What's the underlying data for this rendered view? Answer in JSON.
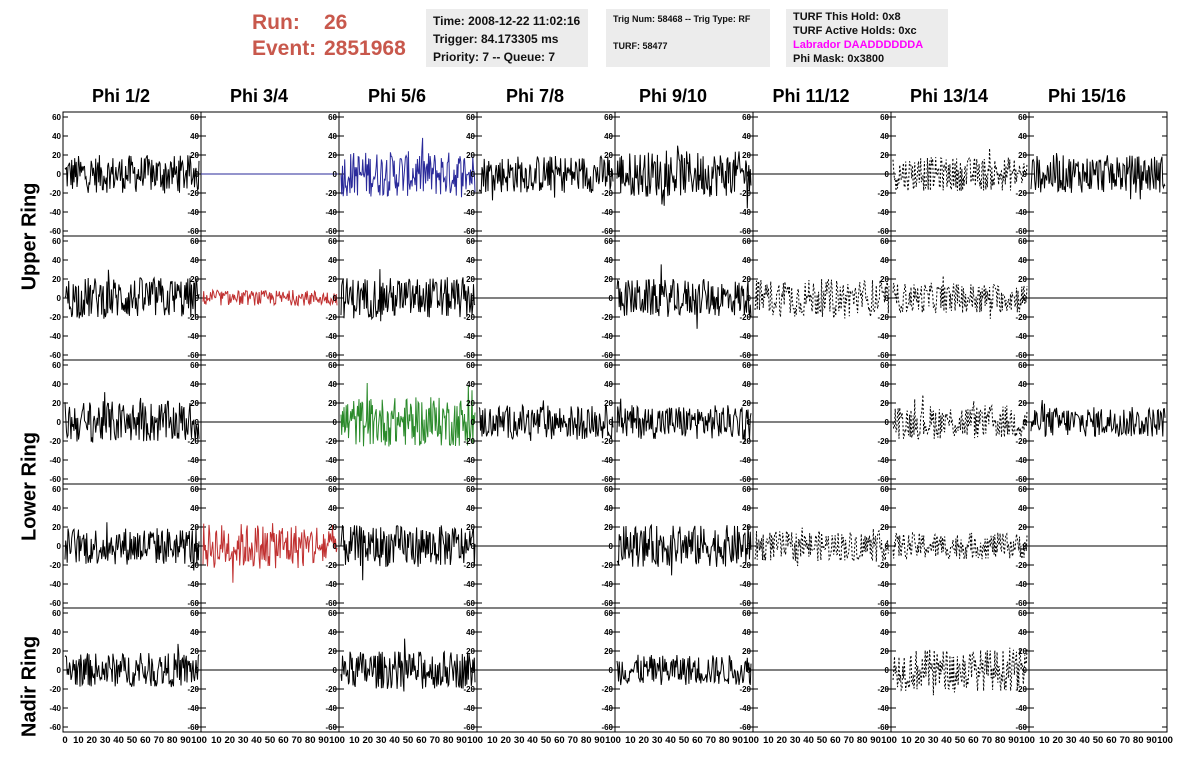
{
  "header": {
    "run_label": "Run:",
    "run_value": "26",
    "event_label": "Event:",
    "event_value": "2851968",
    "color": "#c8584c"
  },
  "info_time": {
    "time": "Time: 2008-12-22 11:02:16",
    "trigger": "Trigger: 84.173305 ms",
    "priority": "Priority: 7 -- Queue: 7"
  },
  "info_trig": {
    "trig": "Trig Num: 58468 -- Trig Type: RF",
    "turf": "TURF: 58477"
  },
  "info_turf": {
    "this_hold": "TURF This Hold: 0x8",
    "active_holds": "TURF Active Holds: 0xc",
    "labrador": "Labrador DAADDDDDDA",
    "phi_mask": "Phi Mask: 0x3800"
  },
  "columns": [
    "Phi 1/2",
    "Phi 3/4",
    "Phi 5/6",
    "Phi 7/8",
    "Phi 9/10",
    "Phi 11/12",
    "Phi 13/14",
    "Phi 15/16"
  ],
  "rows": [
    "Upper Ring",
    "Lower Ring",
    "Nadir Ring"
  ],
  "chart_data": {
    "type": "line",
    "ylim": [
      -60,
      60
    ],
    "xlim": [
      0,
      100
    ],
    "y_ticks": [
      "60",
      "40",
      "20",
      "0",
      "-20",
      "-40",
      "-60"
    ],
    "x_ticks": [
      "0",
      "10",
      "20",
      "30",
      "40",
      "50",
      "60",
      "70",
      "80",
      "90",
      "100"
    ],
    "x_tick_labels_row": [
      "0",
      "10 20 30 40 50 60 70 80 90 100",
      "10 20 30 40 50 60 70 80 90 100"
    ],
    "panels": [
      [
        {
          "style": "solid",
          "color": "#000000",
          "amplitude": 20
        },
        {
          "style": "flat",
          "color": "#2a2a9a",
          "amplitude": 0
        },
        {
          "style": "solid",
          "color": "#2a2a9a",
          "amplitude": 24
        },
        {
          "style": "solid",
          "color": "#000000",
          "amplitude": 20
        },
        {
          "style": "solid",
          "color": "#000000",
          "amplitude": 24
        },
        {
          "style": "flat",
          "color": "#000000",
          "amplitude": 0
        },
        {
          "style": "dashed",
          "color": "#000000",
          "amplitude": 18
        },
        {
          "style": "solid",
          "color": "#000000",
          "amplitude": 20
        }
      ],
      [
        {
          "style": "solid",
          "color": "#000000",
          "amplitude": 22
        },
        {
          "style": "solid",
          "color": "#c03030",
          "amplitude": 8
        },
        {
          "style": "solid",
          "color": "#000000",
          "amplitude": 22
        },
        {
          "style": "flat",
          "color": "#000000",
          "amplitude": 0
        },
        {
          "style": "solid",
          "color": "#000000",
          "amplitude": 20
        },
        {
          "style": "dashed",
          "color": "#000000",
          "amplitude": 20
        },
        {
          "style": "dashed",
          "color": "#000000",
          "amplitude": 16
        },
        {
          "style": "flat",
          "color": "#000000",
          "amplitude": 0
        }
      ],
      [
        {
          "style": "solid",
          "color": "#000000",
          "amplitude": 22
        },
        {
          "style": "flat",
          "color": "#000000",
          "amplitude": 0
        },
        {
          "style": "solid",
          "color": "#2a8a2a",
          "amplitude": 26
        },
        {
          "style": "solid",
          "color": "#000000",
          "amplitude": 18
        },
        {
          "style": "solid",
          "color": "#000000",
          "amplitude": 18
        },
        {
          "style": "flat",
          "color": "#000000",
          "amplitude": 0
        },
        {
          "style": "dashed",
          "color": "#000000",
          "amplitude": 18
        },
        {
          "style": "solid",
          "color": "#000000",
          "amplitude": 16
        }
      ],
      [
        {
          "style": "solid",
          "color": "#000000",
          "amplitude": 20
        },
        {
          "style": "solid",
          "color": "#c03030",
          "amplitude": 24
        },
        {
          "style": "solid",
          "color": "#000000",
          "amplitude": 22
        },
        {
          "style": "flat",
          "color": "#000000",
          "amplitude": 0
        },
        {
          "style": "solid",
          "color": "#000000",
          "amplitude": 22
        },
        {
          "style": "dashed",
          "color": "#000000",
          "amplitude": 16
        },
        {
          "style": "dashed",
          "color": "#000000",
          "amplitude": 14
        },
        {
          "style": "flat",
          "color": "#000000",
          "amplitude": 0
        }
      ],
      [
        {
          "style": "solid",
          "color": "#000000",
          "amplitude": 18
        },
        {
          "style": "flat",
          "color": "#000000",
          "amplitude": 0
        },
        {
          "style": "solid",
          "color": "#000000",
          "amplitude": 20
        },
        {
          "style": "flat",
          "color": "#000000",
          "amplitude": 0
        },
        {
          "style": "solid",
          "color": "#000000",
          "amplitude": 16
        },
        {
          "style": "flat",
          "color": "#000000",
          "amplitude": 0
        },
        {
          "style": "dashed",
          "color": "#000000",
          "amplitude": 22
        },
        {
          "style": "flat",
          "color": "#000000",
          "amplitude": 0
        }
      ]
    ]
  }
}
